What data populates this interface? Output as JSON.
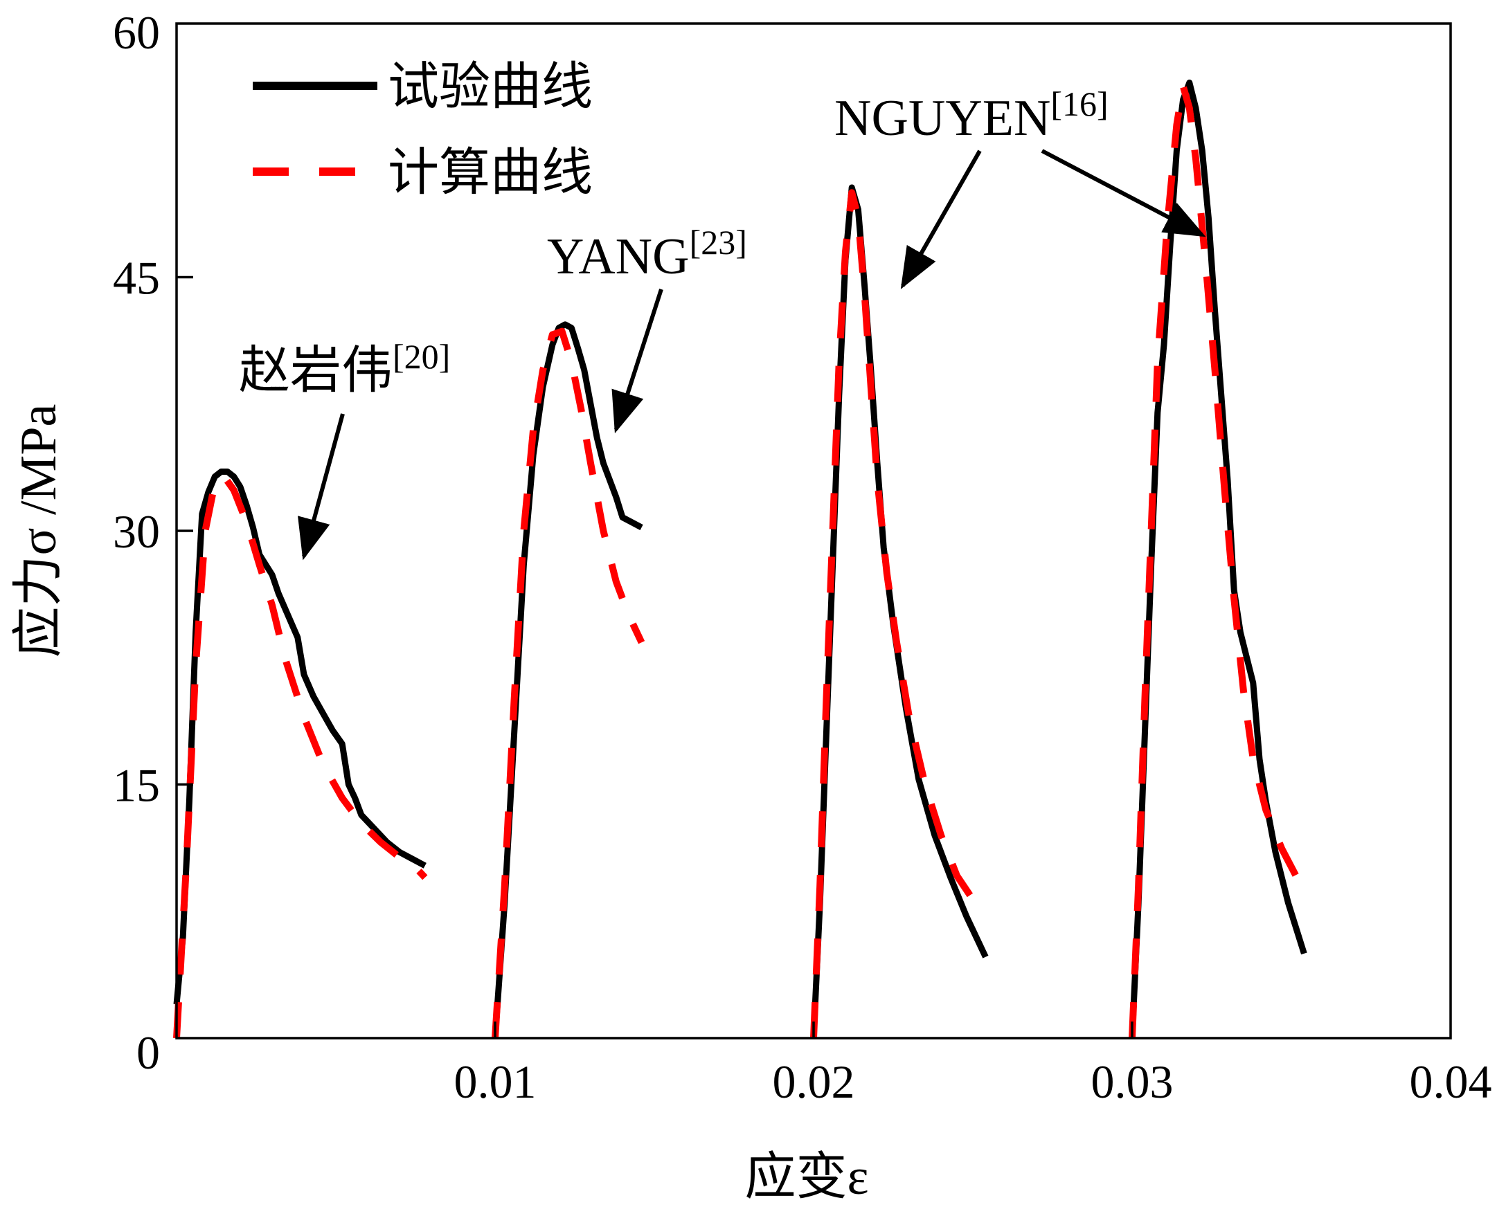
{
  "chart_data": {
    "type": "line",
    "xlabel": "应变ε",
    "ylabel": "应力σ /MPa",
    "xlim": [
      0,
      0.04
    ],
    "ylim": [
      0,
      60
    ],
    "xticks": [
      0.01,
      0.02,
      0.03,
      0.04
    ],
    "xtick_labels": [
      "0.01",
      "0.02",
      "0.03",
      "0.04"
    ],
    "yticks": [
      0,
      15,
      30,
      45,
      60
    ],
    "ytick_labels": [
      "0",
      "15",
      "30",
      "45",
      "60"
    ],
    "grid": false,
    "legend_position": "top-left",
    "colors": {
      "test": "#000000",
      "calc": "#ff0000"
    },
    "legend": [
      {
        "label": "试验曲线",
        "style": "solid",
        "color": "#000000"
      },
      {
        "label": "计算曲线",
        "style": "dashed",
        "color": "#ff0000"
      }
    ],
    "annotations": [
      {
        "text": "赵岩伟",
        "ref": "[20]",
        "points_to": [
          0.004,
          28.5
        ]
      },
      {
        "text": "YANG",
        "ref": "[23]",
        "points_to": [
          0.0138,
          36.0
        ]
      },
      {
        "text": "NGUYEN",
        "ref": "[16]",
        "points_to": [
          0.0228,
          44.5
        ]
      },
      {
        "text": "",
        "ref": "",
        "points_to": [
          0.0322,
          47.5
        ]
      }
    ],
    "series": [
      {
        "group": "赵岩伟",
        "kind": "test",
        "points": [
          [
            0,
            2
          ],
          [
            0.0002,
            6
          ],
          [
            0.0004,
            14
          ],
          [
            0.0006,
            24
          ],
          [
            0.0008,
            31
          ],
          [
            0.001,
            32.3
          ],
          [
            0.0012,
            33.2
          ],
          [
            0.0014,
            33.5
          ],
          [
            0.0016,
            33.5
          ],
          [
            0.0018,
            33.2
          ],
          [
            0.002,
            32.6
          ],
          [
            0.0022,
            31.5
          ],
          [
            0.0024,
            30.2
          ],
          [
            0.0026,
            28.6
          ],
          [
            0.0028,
            28.0
          ],
          [
            0.003,
            27.4
          ],
          [
            0.0032,
            26.3
          ],
          [
            0.0035,
            25.0
          ],
          [
            0.0038,
            23.7
          ],
          [
            0.004,
            21.5
          ],
          [
            0.0043,
            20.2
          ],
          [
            0.0046,
            19.2
          ],
          [
            0.0049,
            18.2
          ],
          [
            0.0052,
            17.4
          ],
          [
            0.0054,
            15.0
          ],
          [
            0.0056,
            14.2
          ],
          [
            0.0058,
            13.2
          ],
          [
            0.0062,
            12.4
          ],
          [
            0.0066,
            11.6
          ],
          [
            0.007,
            11.0
          ],
          [
            0.0074,
            10.6
          ],
          [
            0.0078,
            10.2
          ]
        ]
      },
      {
        "group": "赵岩伟",
        "kind": "calc",
        "points": [
          [
            0,
            0
          ],
          [
            0.0003,
            10
          ],
          [
            0.0006,
            22
          ],
          [
            0.0009,
            30
          ],
          [
            0.0012,
            32.8
          ],
          [
            0.0015,
            33.2
          ],
          [
            0.0018,
            32.4
          ],
          [
            0.0022,
            30.5
          ],
          [
            0.0026,
            28.0
          ],
          [
            0.003,
            25.6
          ],
          [
            0.0034,
            22.5
          ],
          [
            0.004,
            19.0
          ],
          [
            0.0046,
            16.2
          ],
          [
            0.0052,
            14.2
          ],
          [
            0.0058,
            12.7
          ],
          [
            0.0064,
            11.6
          ],
          [
            0.007,
            10.7
          ],
          [
            0.0075,
            10.1
          ],
          [
            0.0078,
            9.5
          ]
        ]
      },
      {
        "group": "YANG",
        "kind": "test",
        "points": [
          [
            0.01,
            0
          ],
          [
            0.0103,
            8
          ],
          [
            0.0106,
            18
          ],
          [
            0.0109,
            28
          ],
          [
            0.0112,
            34.5
          ],
          [
            0.0115,
            38.5
          ],
          [
            0.0118,
            41.0
          ],
          [
            0.012,
            42.0
          ],
          [
            0.0122,
            42.2
          ],
          [
            0.0124,
            42.0
          ],
          [
            0.0126,
            40.8
          ],
          [
            0.0128,
            39.5
          ],
          [
            0.013,
            37.5
          ],
          [
            0.0132,
            35.5
          ],
          [
            0.0134,
            34.0
          ],
          [
            0.0136,
            33.0
          ],
          [
            0.0138,
            32.0
          ],
          [
            0.014,
            30.8
          ],
          [
            0.0146,
            30.2
          ]
        ]
      },
      {
        "group": "YANG",
        "kind": "calc",
        "points": [
          [
            0.01,
            0
          ],
          [
            0.0103,
            9
          ],
          [
            0.0106,
            20
          ],
          [
            0.0109,
            30
          ],
          [
            0.0112,
            36
          ],
          [
            0.0115,
            39.5
          ],
          [
            0.0118,
            41.6
          ],
          [
            0.0121,
            41.8
          ],
          [
            0.0124,
            40.0
          ],
          [
            0.0127,
            37.2
          ],
          [
            0.013,
            34.0
          ],
          [
            0.0134,
            30.0
          ],
          [
            0.0138,
            27.0
          ],
          [
            0.0142,
            25.0
          ],
          [
            0.0146,
            23.4
          ]
        ]
      },
      {
        "group": "NGUYEN",
        "kind": "test",
        "points": [
          [
            0.02,
            0
          ],
          [
            0.0202,
            8
          ],
          [
            0.0204,
            18
          ],
          [
            0.0206,
            28
          ],
          [
            0.0208,
            38
          ],
          [
            0.021,
            46
          ],
          [
            0.0212,
            50.3
          ],
          [
            0.0214,
            49.0
          ],
          [
            0.0216,
            44.5
          ],
          [
            0.0218,
            39.5
          ],
          [
            0.022,
            34.0
          ],
          [
            0.0222,
            29.0
          ],
          [
            0.0225,
            24.5
          ],
          [
            0.0229,
            19.5
          ],
          [
            0.0233,
            15.3
          ],
          [
            0.0238,
            12.0
          ],
          [
            0.0243,
            9.5
          ],
          [
            0.0248,
            7.2
          ],
          [
            0.0254,
            4.8
          ]
        ]
      },
      {
        "group": "NGUYEN",
        "kind": "calc",
        "points": [
          [
            0.02,
            0
          ],
          [
            0.0202,
            9
          ],
          [
            0.0204,
            20
          ],
          [
            0.0206,
            30
          ],
          [
            0.0208,
            40
          ],
          [
            0.021,
            46.5
          ],
          [
            0.0212,
            50.0
          ],
          [
            0.0214,
            48.5
          ],
          [
            0.0216,
            44.0
          ],
          [
            0.0218,
            38.5
          ],
          [
            0.022,
            33.0
          ],
          [
            0.0223,
            27.5
          ],
          [
            0.0226,
            23.5
          ],
          [
            0.023,
            19.0
          ],
          [
            0.0235,
            15.0
          ],
          [
            0.024,
            12.0
          ],
          [
            0.0245,
            9.6
          ],
          [
            0.025,
            8.2
          ]
        ]
      },
      {
        "group": "NGUYEN",
        "kind": "test",
        "points": [
          [
            0.03,
            0
          ],
          [
            0.0302,
            8
          ],
          [
            0.0304,
            18
          ],
          [
            0.0306,
            28
          ],
          [
            0.0308,
            37
          ],
          [
            0.031,
            41
          ],
          [
            0.0312,
            47
          ],
          [
            0.0314,
            52.5
          ],
          [
            0.0316,
            55.5
          ],
          [
            0.0318,
            56.5
          ],
          [
            0.032,
            55.0
          ],
          [
            0.0322,
            52.5
          ],
          [
            0.0324,
            48.5
          ],
          [
            0.0326,
            43.0
          ],
          [
            0.0328,
            38.0
          ],
          [
            0.033,
            33.0
          ],
          [
            0.0332,
            26.5
          ],
          [
            0.0334,
            24.0
          ],
          [
            0.0336,
            22.5
          ],
          [
            0.0338,
            21.0
          ],
          [
            0.034,
            16.5
          ],
          [
            0.0342,
            14.0
          ],
          [
            0.0345,
            11.0
          ],
          [
            0.0349,
            8.0
          ],
          [
            0.0354,
            5.0
          ]
        ]
      },
      {
        "group": "NGUYEN",
        "kind": "calc",
        "points": [
          [
            0.03,
            0
          ],
          [
            0.0302,
            9
          ],
          [
            0.0304,
            20
          ],
          [
            0.0306,
            30
          ],
          [
            0.0308,
            40
          ],
          [
            0.0311,
            48
          ],
          [
            0.0314,
            54.0
          ],
          [
            0.0316,
            56.3
          ],
          [
            0.0318,
            55.0
          ],
          [
            0.032,
            52.0
          ],
          [
            0.0323,
            46.0
          ],
          [
            0.0326,
            39.5
          ],
          [
            0.0329,
            32.5
          ],
          [
            0.0332,
            26.0
          ],
          [
            0.0335,
            20.5
          ],
          [
            0.0338,
            16.5
          ],
          [
            0.0342,
            13.5
          ],
          [
            0.0347,
            11.2
          ],
          [
            0.0352,
            9.4
          ]
        ]
      }
    ]
  }
}
